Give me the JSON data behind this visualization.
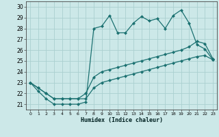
{
  "xlabel": "Humidex (Indice chaleur)",
  "bg_color": "#cce8e8",
  "grid_color": "#aad0d0",
  "line_color": "#1a7070",
  "xlim": [
    -0.5,
    23.5
  ],
  "ylim": [
    20.5,
    30.5
  ],
  "xticks": [
    0,
    1,
    2,
    3,
    4,
    5,
    6,
    7,
    8,
    9,
    10,
    11,
    12,
    13,
    14,
    15,
    16,
    17,
    18,
    19,
    20,
    21,
    22,
    23
  ],
  "yticks": [
    21,
    22,
    23,
    24,
    25,
    26,
    27,
    28,
    29,
    30
  ],
  "curve1_x": [
    0,
    1,
    2,
    3,
    4,
    5,
    6,
    7,
    8,
    9,
    10,
    11,
    12,
    13,
    14,
    15,
    16,
    17,
    18,
    19,
    20,
    21,
    22,
    23
  ],
  "curve1_y": [
    23.0,
    22.2,
    21.5,
    21.0,
    21.0,
    21.0,
    21.0,
    21.2,
    28.0,
    28.2,
    29.2,
    27.6,
    27.6,
    28.5,
    29.1,
    28.7,
    28.9,
    28.0,
    29.2,
    29.7,
    28.5,
    26.5,
    26.1,
    25.1
  ],
  "curve2_x": [
    0,
    1,
    2,
    3,
    4,
    5,
    6,
    7,
    8,
    9,
    10,
    11,
    12,
    13,
    14,
    15,
    16,
    17,
    18,
    19,
    20,
    21,
    22,
    23
  ],
  "curve2_y": [
    23.0,
    22.5,
    22.0,
    21.5,
    21.5,
    21.5,
    21.5,
    22.0,
    23.5,
    24.0,
    24.2,
    24.4,
    24.6,
    24.8,
    25.0,
    25.2,
    25.4,
    25.6,
    25.8,
    26.0,
    26.3,
    26.8,
    26.6,
    25.2
  ],
  "curve3_x": [
    0,
    1,
    2,
    3,
    4,
    5,
    6,
    7,
    8,
    9,
    10,
    11,
    12,
    13,
    14,
    15,
    16,
    17,
    18,
    19,
    20,
    21,
    22,
    23
  ],
  "curve3_y": [
    23.0,
    22.5,
    22.0,
    21.5,
    21.5,
    21.5,
    21.5,
    21.5,
    22.5,
    23.0,
    23.2,
    23.4,
    23.6,
    23.8,
    24.0,
    24.2,
    24.4,
    24.6,
    24.8,
    25.0,
    25.2,
    25.4,
    25.5,
    25.1
  ]
}
